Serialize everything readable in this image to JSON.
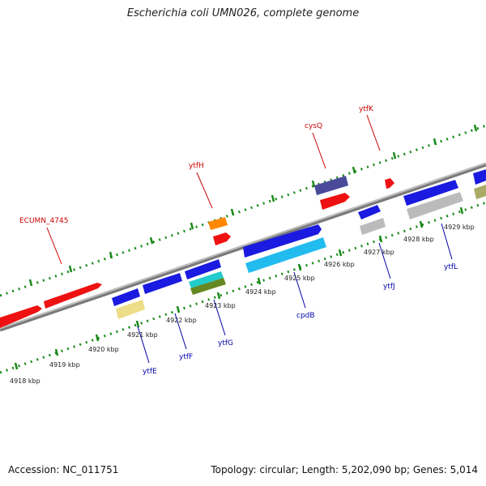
{
  "title": "Escherichia coli UMN026, complete genome",
  "footer": {
    "accession": "Accession: NC_011751",
    "summary": "Topology: circular; Length: 5,202,090 bp; Genes: 5,014"
  },
  "colors": {
    "backbone": "#8c8c8c",
    "scale_dots": "#1a8a1a",
    "label_forward": "#cc0000",
    "label_reverse": "#0000aa"
  },
  "scale": {
    "unit": "kbp",
    "ticks": [
      "4918 kbp",
      "4919 kbp",
      "4920 kbp",
      "4921 kbp",
      "4922 kbp",
      "4923 kbp",
      "4924 kbp",
      "4925 kbp",
      "4926 kbp",
      "4927 kbp",
      "4928 kbp",
      "4929 kbp"
    ]
  },
  "gene_labels": {
    "forward": [
      "ECUMN_4745",
      "ytfH",
      "cysQ",
      "ytfK"
    ],
    "reverse": [
      "ytfE",
      "ytfF",
      "ytfG",
      "cpdB",
      "ytfJ",
      "ytfL"
    ]
  }
}
